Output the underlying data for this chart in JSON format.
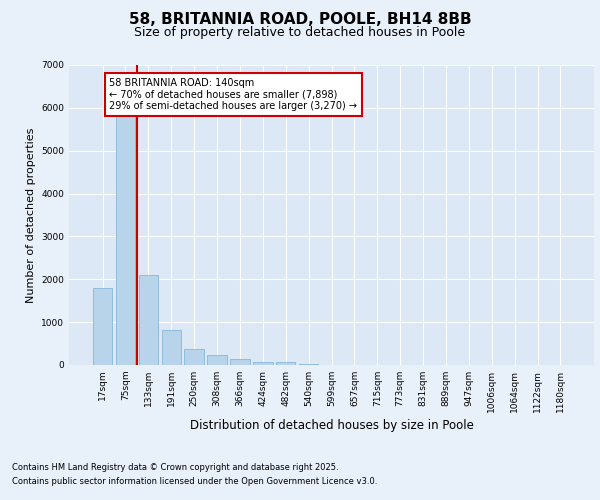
{
  "title": "58, BRITANNIA ROAD, POOLE, BH14 8BB",
  "subtitle": "Size of property relative to detached houses in Poole",
  "xlabel": "Distribution of detached houses by size in Poole",
  "ylabel": "Number of detached properties",
  "categories": [
    "17sqm",
    "75sqm",
    "133sqm",
    "191sqm",
    "250sqm",
    "308sqm",
    "366sqm",
    "424sqm",
    "482sqm",
    "540sqm",
    "599sqm",
    "657sqm",
    "715sqm",
    "773sqm",
    "831sqm",
    "889sqm",
    "947sqm",
    "1006sqm",
    "1064sqm",
    "1122sqm",
    "1180sqm"
  ],
  "values": [
    1800,
    5850,
    2100,
    820,
    380,
    230,
    130,
    80,
    80,
    35,
    10,
    0,
    0,
    0,
    0,
    0,
    0,
    0,
    0,
    0,
    0
  ],
  "bar_color": "#b8d4ea",
  "bar_edge_color": "#7aafd4",
  "vline_color": "#cc0000",
  "annotation_text": "58 BRITANNIA ROAD: 140sqm\n← 70% of detached houses are smaller (7,898)\n29% of semi-detached houses are larger (3,270) →",
  "annotation_box_color": "#cc0000",
  "ylim": [
    0,
    7000
  ],
  "yticks": [
    0,
    1000,
    2000,
    3000,
    4000,
    5000,
    6000,
    7000
  ],
  "bg_color": "#dce8f5",
  "fig_bg_color": "#e8f0fa",
  "footer_line1": "Contains HM Land Registry data © Crown copyright and database right 2025.",
  "footer_line2": "Contains public sector information licensed under the Open Government Licence v3.0.",
  "title_fontsize": 11,
  "subtitle_fontsize": 9,
  "tick_fontsize": 6.5,
  "ylabel_fontsize": 8,
  "xlabel_fontsize": 8.5,
  "footer_fontsize": 6,
  "annotation_fontsize": 7
}
